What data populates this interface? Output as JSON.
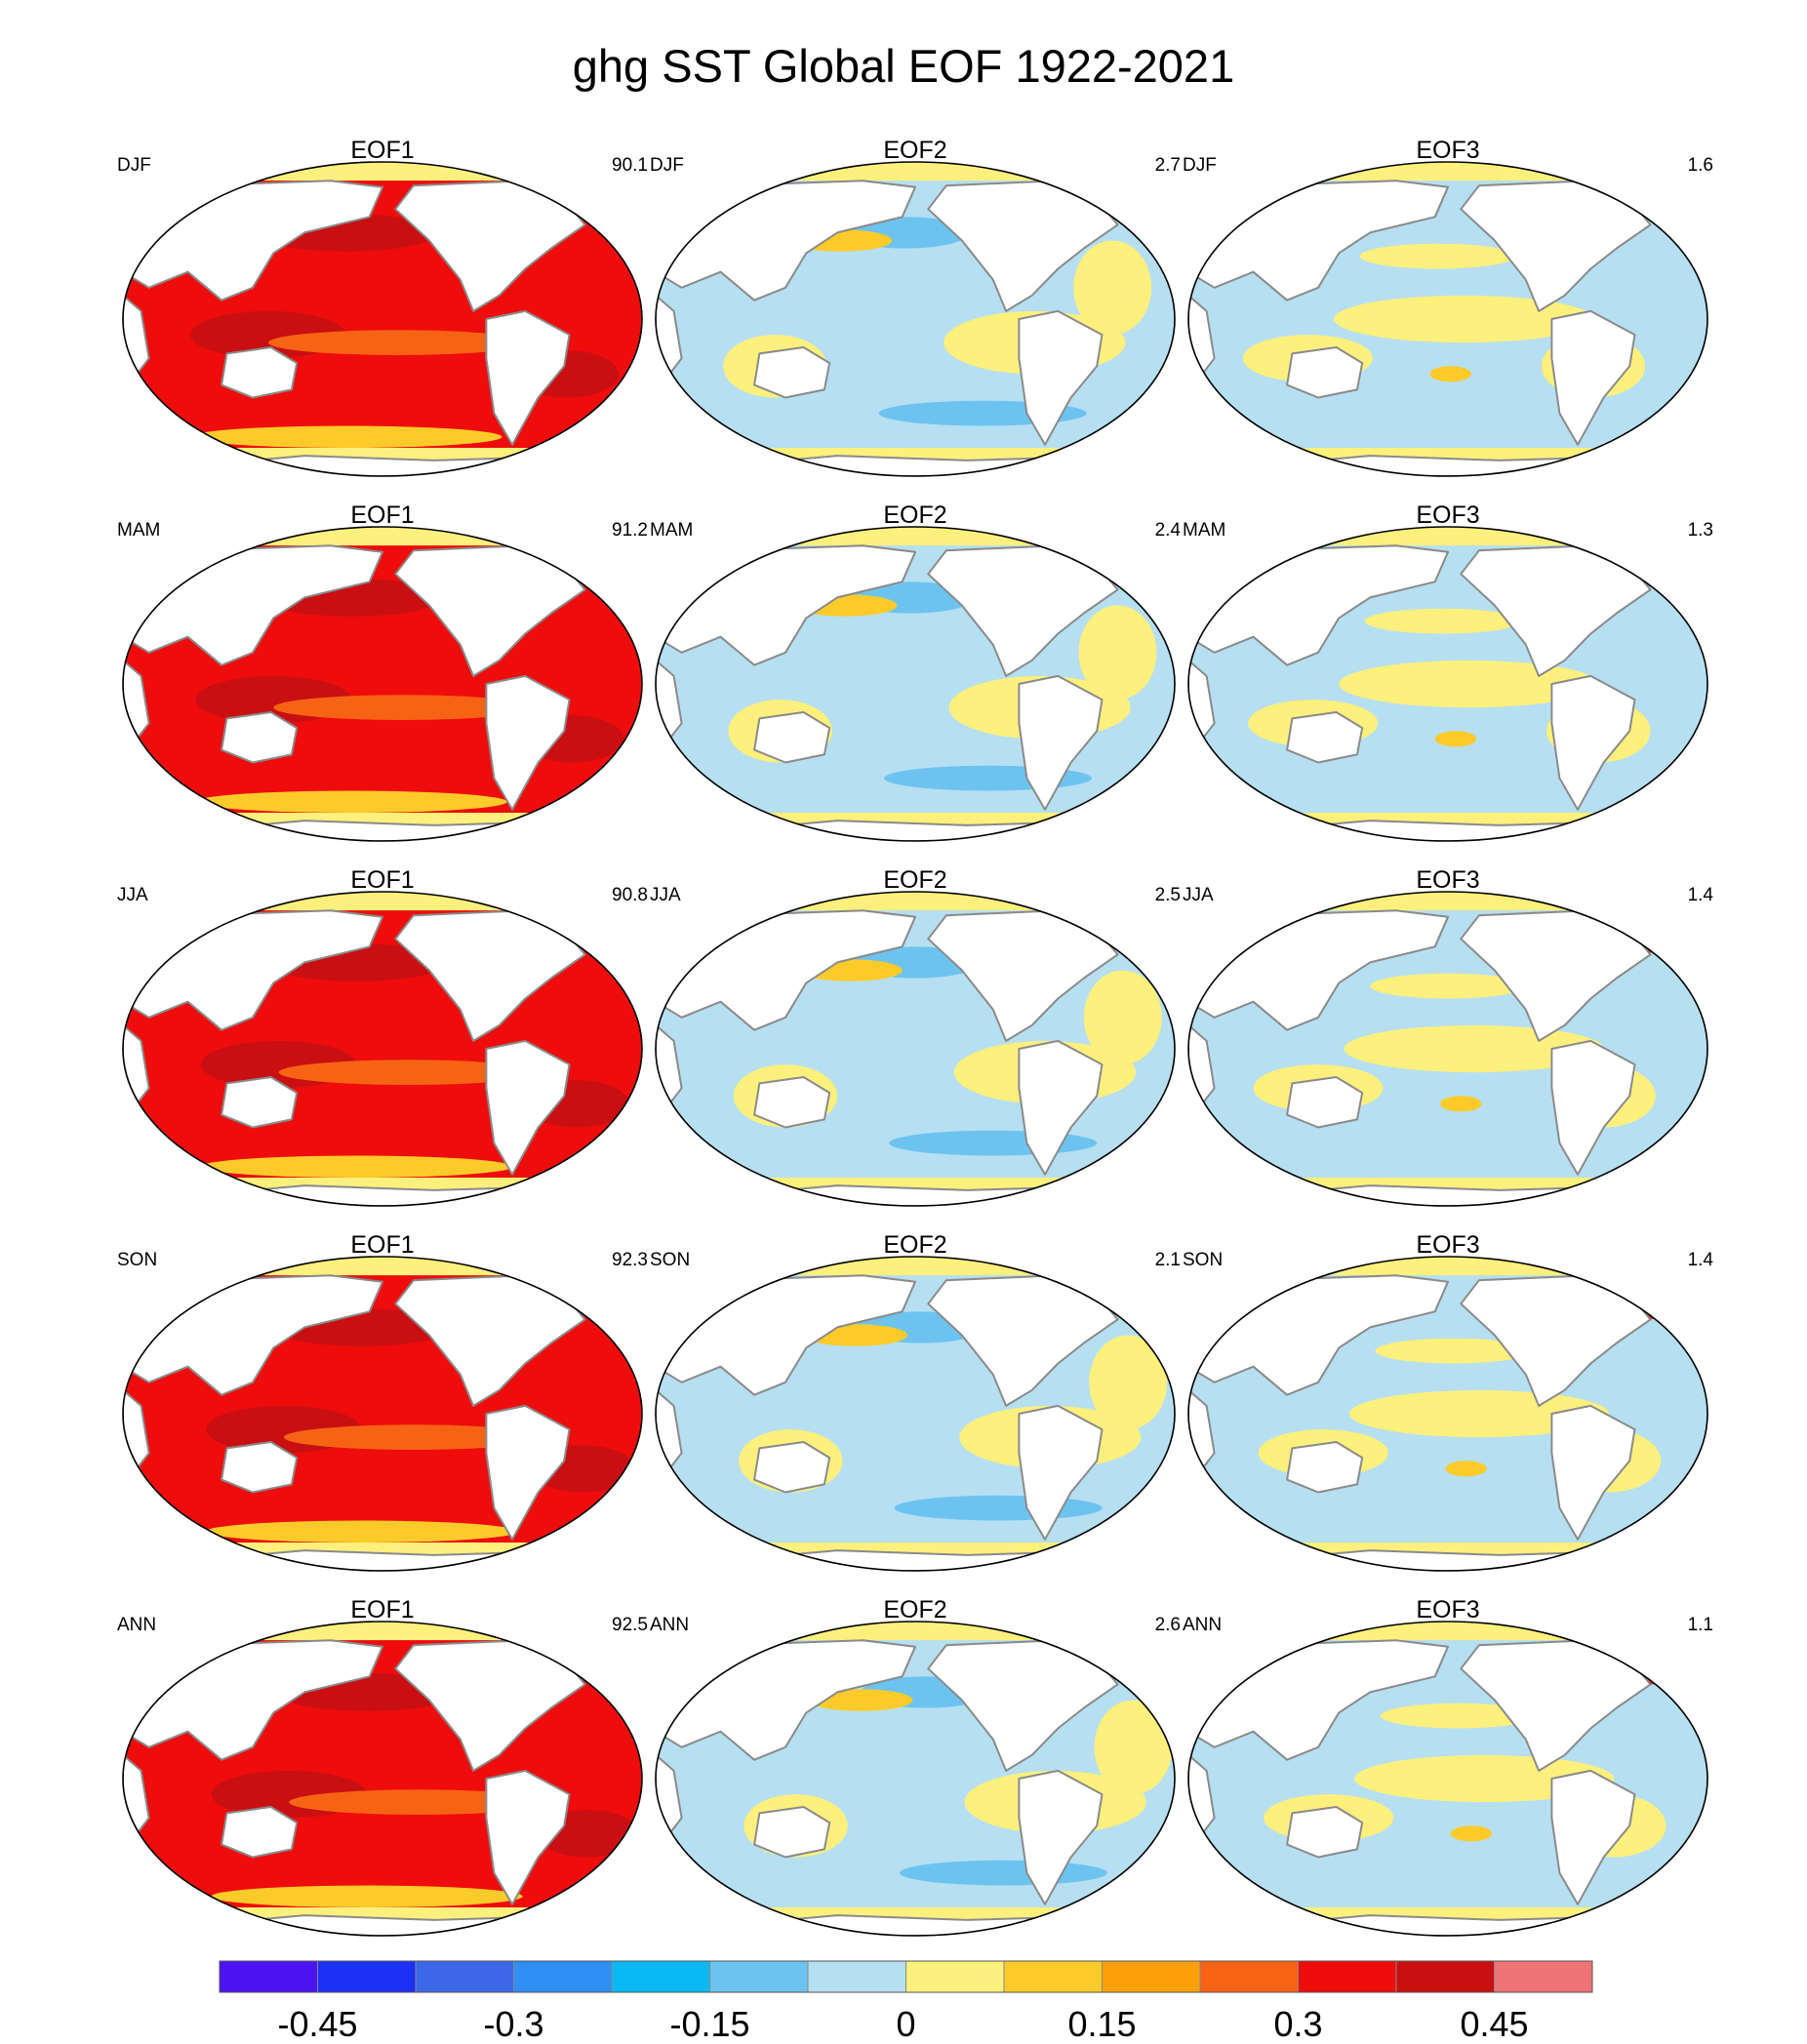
{
  "title": "ghg SST Global EOF 1922-2021",
  "chart_data": {
    "type": "heatmap",
    "title": "ghg SST Global EOF 1922-2021",
    "projection": "Robinson-like world map, Pacific-centered",
    "rows": [
      "DJF",
      "MAM",
      "JJA",
      "SON",
      "ANN"
    ],
    "columns": [
      "EOF1",
      "EOF2",
      "EOF3"
    ],
    "panels": [
      {
        "season": "DJF",
        "eof": "EOF1",
        "variance_pct": "90.1"
      },
      {
        "season": "DJF",
        "eof": "EOF2",
        "variance_pct": "2.7"
      },
      {
        "season": "DJF",
        "eof": "EOF3",
        "variance_pct": "1.6"
      },
      {
        "season": "MAM",
        "eof": "EOF1",
        "variance_pct": "91.2"
      },
      {
        "season": "MAM",
        "eof": "EOF2",
        "variance_pct": "2.4"
      },
      {
        "season": "MAM",
        "eof": "EOF3",
        "variance_pct": "1.3"
      },
      {
        "season": "JJA",
        "eof": "EOF1",
        "variance_pct": "90.8"
      },
      {
        "season": "JJA",
        "eof": "EOF2",
        "variance_pct": "2.5"
      },
      {
        "season": "JJA",
        "eof": "EOF3",
        "variance_pct": "1.4"
      },
      {
        "season": "SON",
        "eof": "EOF1",
        "variance_pct": "92.3"
      },
      {
        "season": "SON",
        "eof": "EOF2",
        "variance_pct": "2.1"
      },
      {
        "season": "SON",
        "eof": "EOF3",
        "variance_pct": "1.4"
      },
      {
        "season": "ANN",
        "eof": "EOF1",
        "variance_pct": "92.5"
      },
      {
        "season": "ANN",
        "eof": "EOF2",
        "variance_pct": "2.6"
      },
      {
        "season": "ANN",
        "eof": "EOF3",
        "variance_pct": "1.1"
      }
    ],
    "colorbar": {
      "bins": 14,
      "colors": [
        "#4b12f2",
        "#1d30f5",
        "#3c68e8",
        "#2f8ff5",
        "#08b9f5",
        "#6cc3ef",
        "#b6dff1",
        "#fef07c",
        "#fccb2a",
        "#f9a00b",
        "#f76314",
        "#ef0c0c",
        "#c90f12",
        "#ee7477"
      ],
      "tick_labels": [
        "-0.45",
        "-0.3",
        "-0.15",
        "0",
        "0.15",
        "0.3",
        "0.45"
      ],
      "tick_values": [
        -0.45,
        -0.3,
        -0.15,
        0,
        0.15,
        0.3,
        0.45
      ],
      "range": [
        -0.525,
        0.525
      ]
    }
  }
}
